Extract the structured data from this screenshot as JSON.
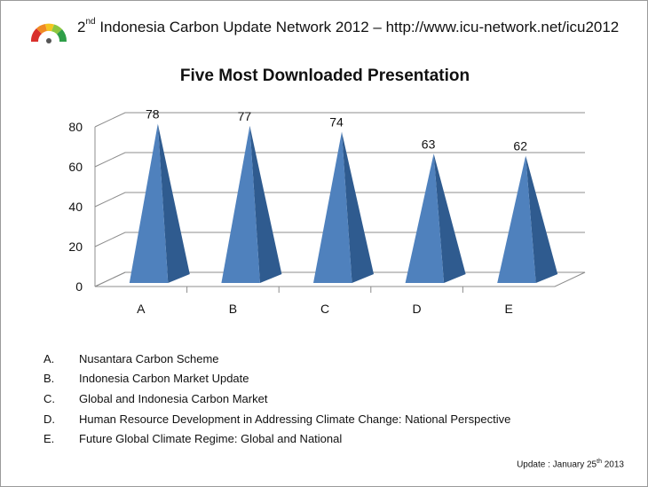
{
  "header": {
    "prefix": "2",
    "ordinal": "nd",
    "text": " Indonesia Carbon Update Network 2012 – http://www.icu-network.net/icu2012"
  },
  "logo": {
    "icon": "rainbow-gauge-logo"
  },
  "chart_data": {
    "type": "bar",
    "bar_shape": "3d-pyramid",
    "title": "Five Most Downloaded Presentation",
    "categories": [
      "A",
      "B",
      "C",
      "D",
      "E"
    ],
    "values": [
      78,
      77,
      74,
      63,
      62
    ],
    "data_labels": [
      "78",
      "77",
      "74",
      "63",
      "62"
    ],
    "ylim": [
      0,
      80
    ],
    "yticks": [
      0,
      20,
      40,
      60,
      80
    ],
    "grid": true,
    "legend": "none",
    "bar_color": "#4f81bd"
  },
  "legend_items": [
    {
      "letter": "A.",
      "label": "Nusantara Carbon Scheme"
    },
    {
      "letter": "B.",
      "label": "Indonesia Carbon Market Update"
    },
    {
      "letter": "C.",
      "label": "Global and Indonesia Carbon Market"
    },
    {
      "letter": "D.",
      "label": "Human Resource Development in Addressing Climate Change: National Perspective"
    },
    {
      "letter": "E.",
      "label": "Future Global Climate Regime: Global and National"
    }
  ],
  "footer": {
    "prefix": "Update : January 25",
    "ordinal": "th",
    "suffix": " 2013"
  }
}
